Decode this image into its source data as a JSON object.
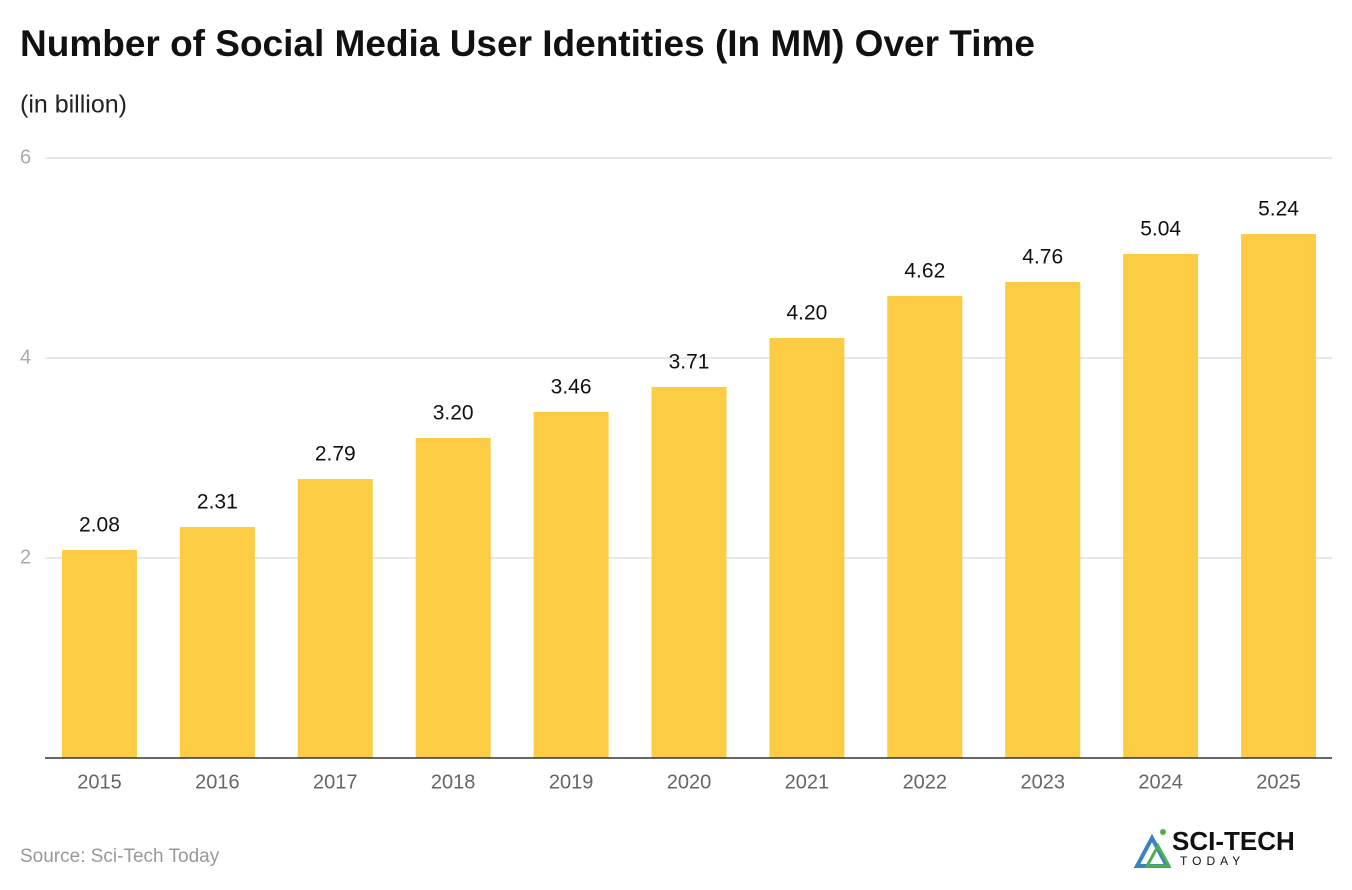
{
  "chart_data": {
    "type": "bar",
    "title": "Number of Social Media User Identities (In MM) Over Time",
    "subtitle": "(in billion)",
    "categories": [
      "2015",
      "2016",
      "2017",
      "2018",
      "2019",
      "2020",
      "2021",
      "2022",
      "2023",
      "2024",
      "2025"
    ],
    "values": [
      2.08,
      2.31,
      2.79,
      3.2,
      3.46,
      3.71,
      4.2,
      4.62,
      4.76,
      5.04,
      5.24
    ],
    "value_labels": [
      "2.08",
      "2.31",
      "2.79",
      "3.20",
      "3.46",
      "3.71",
      "4.20",
      "4.62",
      "4.76",
      "5.04",
      "5.24"
    ],
    "color": "#fccc45",
    "ylim": [
      0,
      6
    ],
    "yticks": [
      2,
      4,
      6
    ],
    "grid": true,
    "source": "Source: Sci-Tech Today",
    "logo": {
      "name": "SCI-TECH",
      "tagline": "TODAY"
    }
  }
}
